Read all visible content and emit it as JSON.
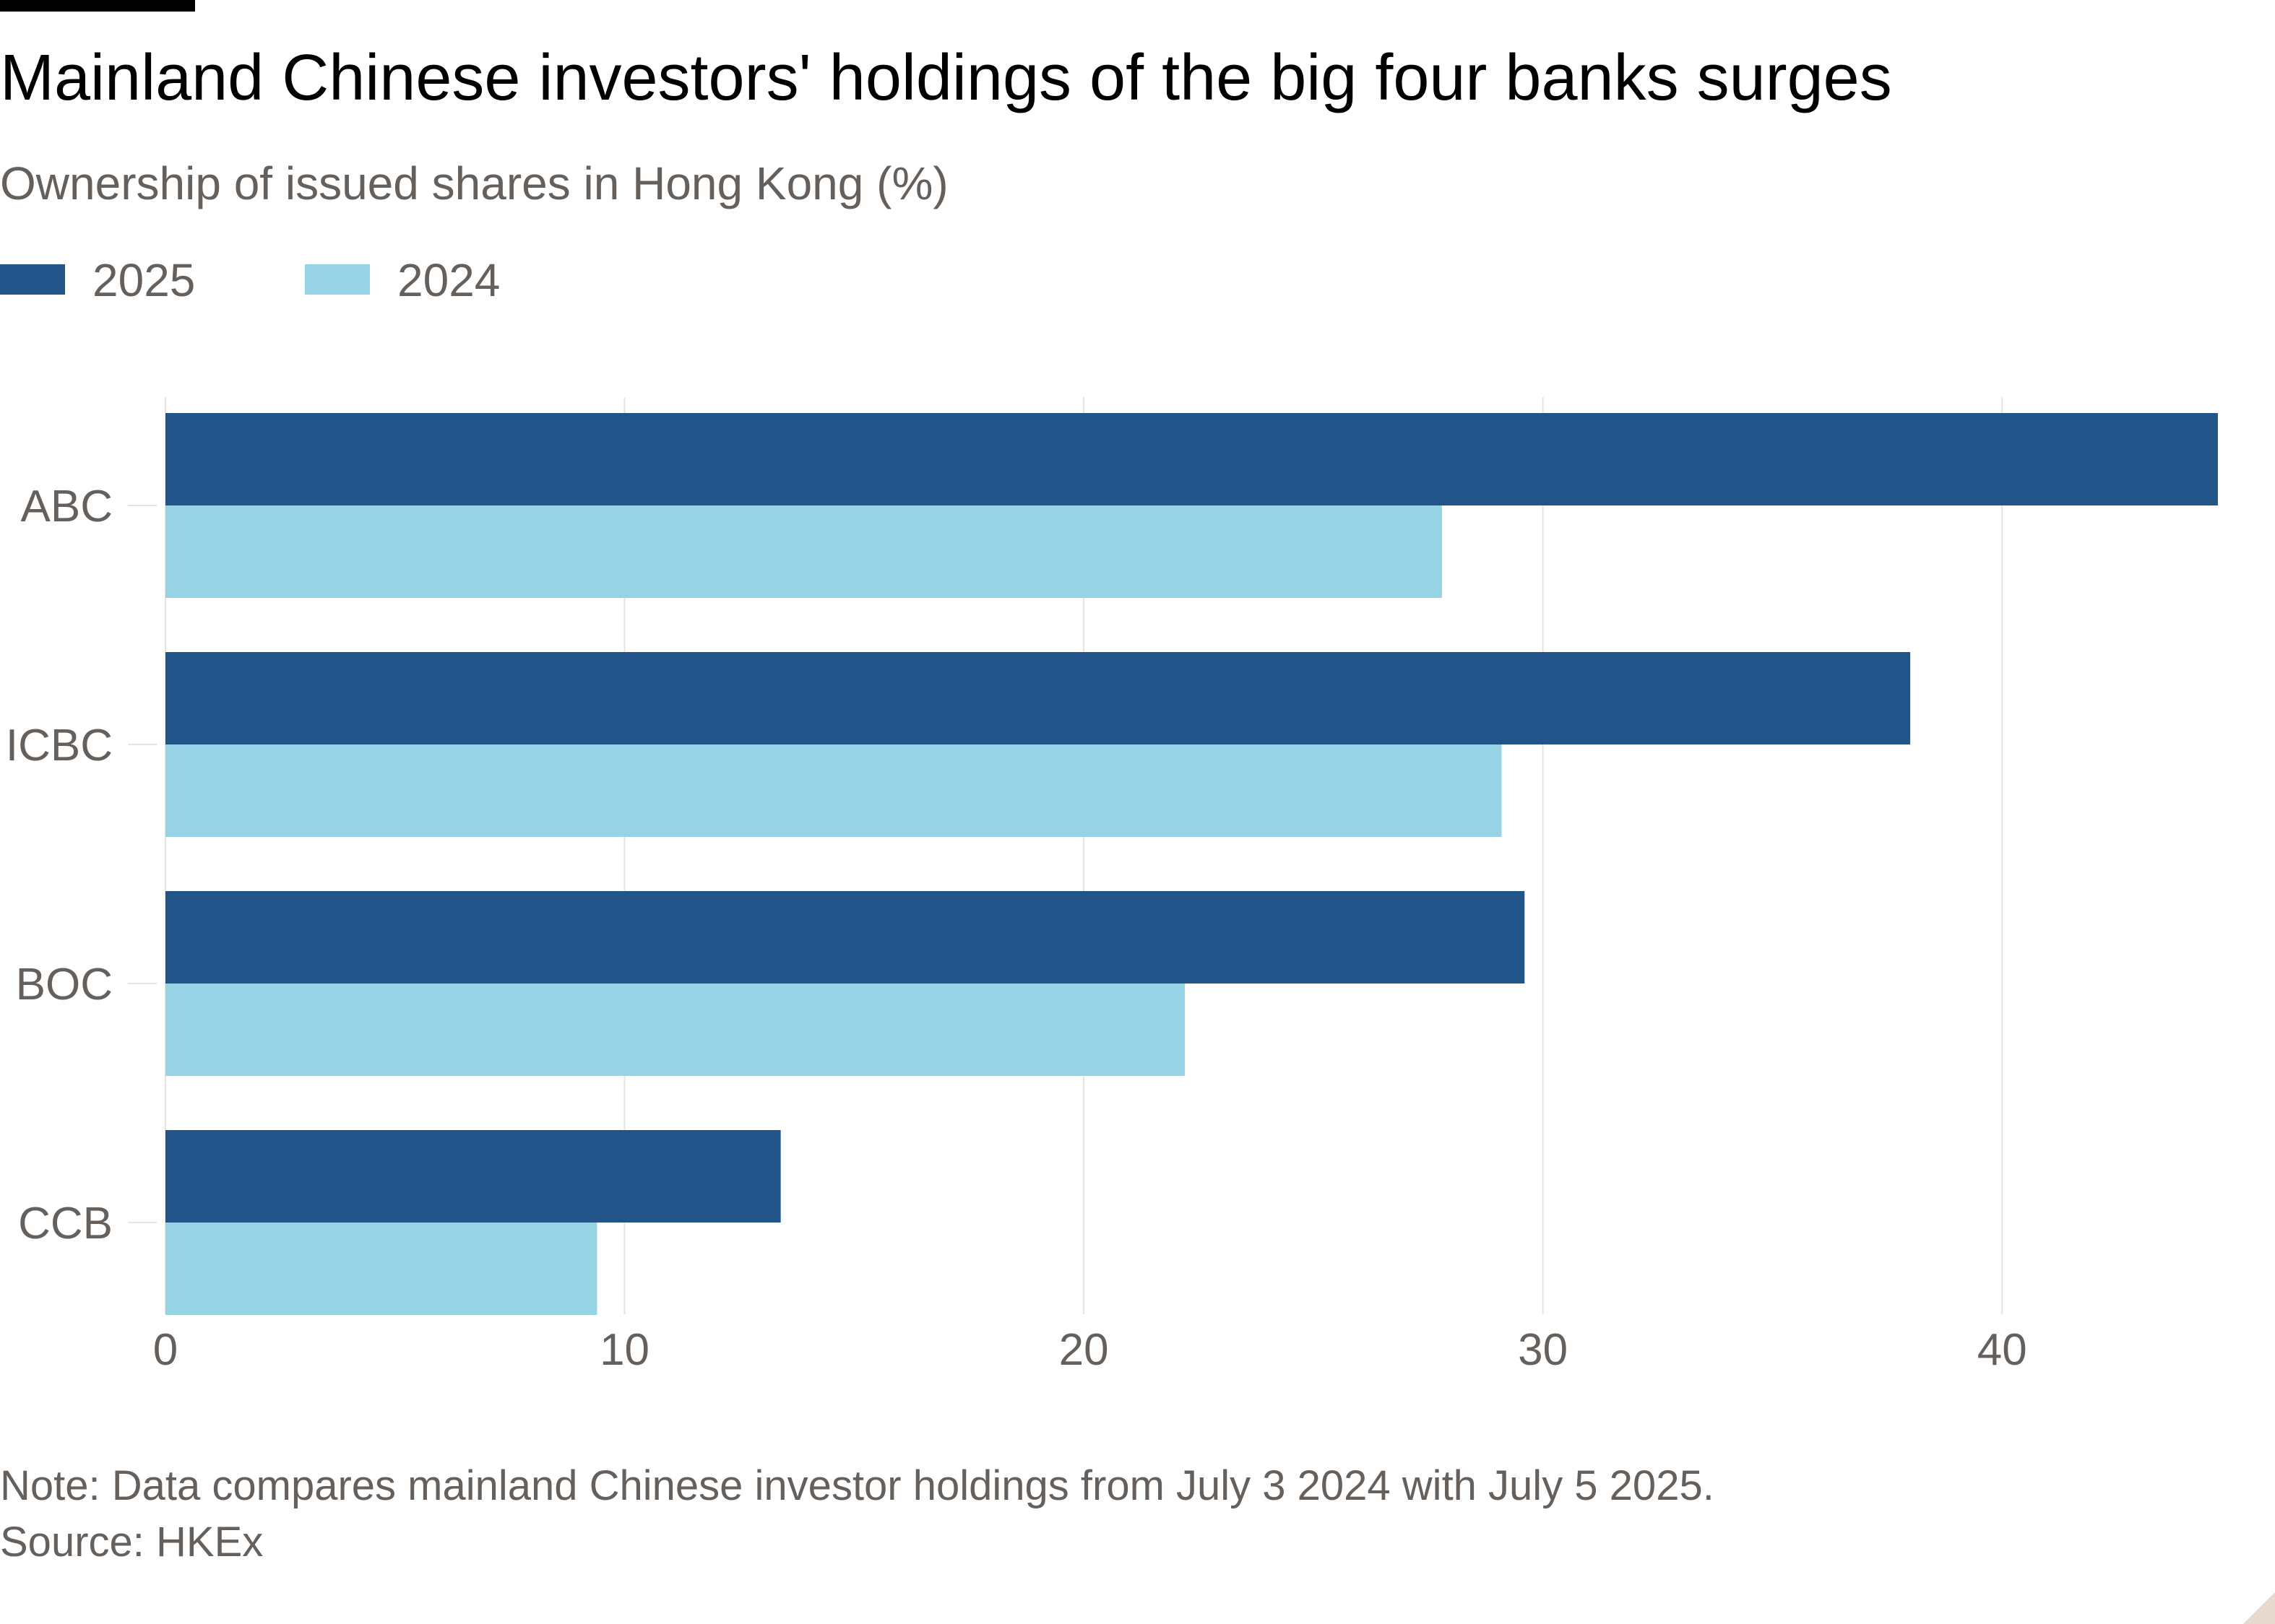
{
  "title": "Mainland Chinese investors' holdings of the big four banks surges",
  "subtitle": "Ownership of issued shares in Hong Kong (%)",
  "note": "Note: Data compares mainland Chinese investor holdings from July 3 2024 with July 5 2025.",
  "source": "Source: HKEx",
  "colors": {
    "series_2025": "#21558a",
    "series_2024": "#96d3e5",
    "gridline": "#e8e3de",
    "tick_text": "#66605c"
  },
  "chart_data": {
    "type": "bar",
    "orientation": "horizontal",
    "categories": [
      "ABC",
      "ICBC",
      "BOC",
      "CCB"
    ],
    "series": [
      {
        "name": "2025",
        "values": [
          44.7,
          38.0,
          29.6,
          13.4
        ]
      },
      {
        "name": "2024",
        "values": [
          27.8,
          29.1,
          22.2,
          9.4
        ]
      }
    ],
    "xlim": [
      0,
      45
    ],
    "xticks": [
      0,
      10,
      20,
      30,
      40
    ],
    "title": "Mainland Chinese investors' holdings of the big four banks surges",
    "subtitle": "Ownership of issued shares in Hong Kong (%)",
    "xlabel": "",
    "ylabel": "",
    "grid": true,
    "legend": "top-left"
  }
}
